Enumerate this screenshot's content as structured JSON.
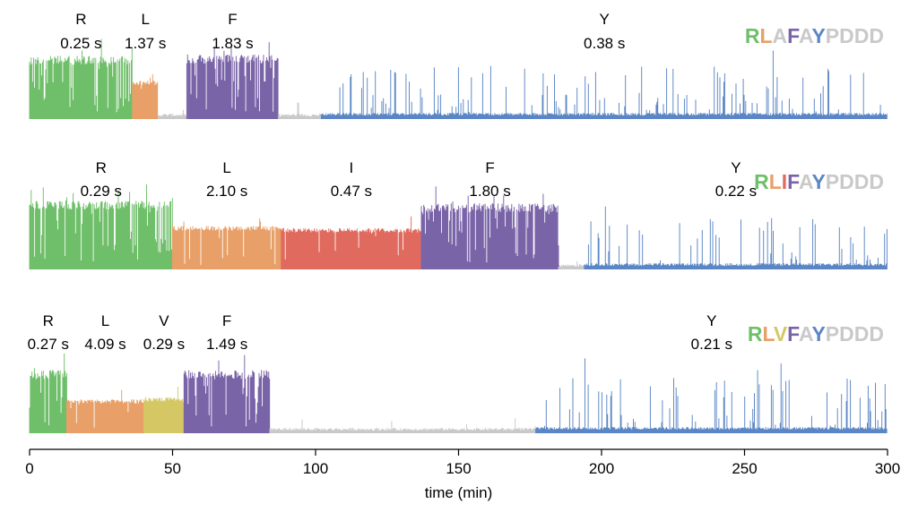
{
  "chart_data": {
    "type": "line",
    "xlabel": "time (min)",
    "xlim": [
      0,
      300
    ],
    "xticks": [
      "0",
      "50",
      "100",
      "150",
      "200",
      "250",
      "300"
    ],
    "grid": false,
    "colors": {
      "R": "#6fbf6a",
      "L": "#e8a068",
      "A": "#c9c9c9",
      "I": "#e06a5e",
      "V": "#d6c765",
      "F": "#7a64a8",
      "Y": "#5b86c5",
      "gap": "#c9c9c9",
      "P": "#c9c9c9",
      "D": "#c9c9c9"
    },
    "traces": [
      {
        "sequence": [
          "R",
          "L",
          "A",
          "F",
          "A",
          "Y",
          "P",
          "D",
          "D",
          "D"
        ],
        "segments": [
          {
            "residue": "R",
            "start": 0,
            "end": 36,
            "level": 0.82,
            "mode": "dense",
            "label": "R",
            "time": "0.25 s"
          },
          {
            "residue": "L",
            "start": 36,
            "end": 45,
            "level": 0.48,
            "mode": "block",
            "label": "L",
            "time": "1.37 s"
          },
          {
            "residue": "gap",
            "start": 45,
            "end": 55,
            "level": 0,
            "mode": "baseline"
          },
          {
            "residue": "F",
            "start": 55,
            "end": 87,
            "level": 0.84,
            "mode": "dense",
            "label": "F",
            "time": "1.83 s"
          },
          {
            "residue": "gap",
            "start": 87,
            "end": 102,
            "level": 0,
            "mode": "baseline"
          },
          {
            "residue": "Y",
            "start": 102,
            "end": 300,
            "level": 0.72,
            "mode": "sparse",
            "label": "Y",
            "time": "0.38 s"
          }
        ]
      },
      {
        "sequence": [
          "R",
          "L",
          "I",
          "F",
          "A",
          "Y",
          "P",
          "D",
          "D",
          "D"
        ],
        "segments": [
          {
            "residue": "R",
            "start": 0,
            "end": 50,
            "level": 0.9,
            "mode": "dense",
            "label": "R",
            "time": "0.29 s"
          },
          {
            "residue": "L",
            "start": 50,
            "end": 88,
            "level": 0.55,
            "mode": "block",
            "label": "L",
            "time": "2.10 s"
          },
          {
            "residue": "I",
            "start": 88,
            "end": 137,
            "level": 0.52,
            "mode": "block",
            "label": "I",
            "time": "0.47 s"
          },
          {
            "residue": "F",
            "start": 137,
            "end": 185,
            "level": 0.86,
            "mode": "dense",
            "label": "F",
            "time": "1.80 s"
          },
          {
            "residue": "gap",
            "start": 185,
            "end": 194,
            "level": 0,
            "mode": "baseline"
          },
          {
            "residue": "Y",
            "start": 194,
            "end": 300,
            "level": 0.7,
            "mode": "sparse",
            "label": "Y",
            "time": "0.22 s"
          }
        ]
      },
      {
        "sequence": [
          "R",
          "L",
          "V",
          "F",
          "A",
          "Y",
          "P",
          "D",
          "D",
          "D"
        ],
        "segments": [
          {
            "residue": "R",
            "start": 0,
            "end": 13,
            "level": 0.82,
            "mode": "dense",
            "label": "R",
            "time": "0.27 s"
          },
          {
            "residue": "L",
            "start": 13,
            "end": 40,
            "level": 0.42,
            "mode": "block",
            "label": "L",
            "time": "4.09 s"
          },
          {
            "residue": "V",
            "start": 40,
            "end": 54,
            "level": 0.45,
            "mode": "block",
            "label": "V",
            "time": "0.29 s"
          },
          {
            "residue": "F",
            "start": 54,
            "end": 84,
            "level": 0.82,
            "mode": "dense",
            "label": "F",
            "time": "1.49 s"
          },
          {
            "residue": "gap",
            "start": 84,
            "end": 177,
            "level": 0,
            "mode": "baseline"
          },
          {
            "residue": "Y",
            "start": 177,
            "end": 300,
            "level": 0.75,
            "mode": "sparse",
            "label": "Y",
            "time": "0.21 s"
          }
        ]
      }
    ]
  }
}
